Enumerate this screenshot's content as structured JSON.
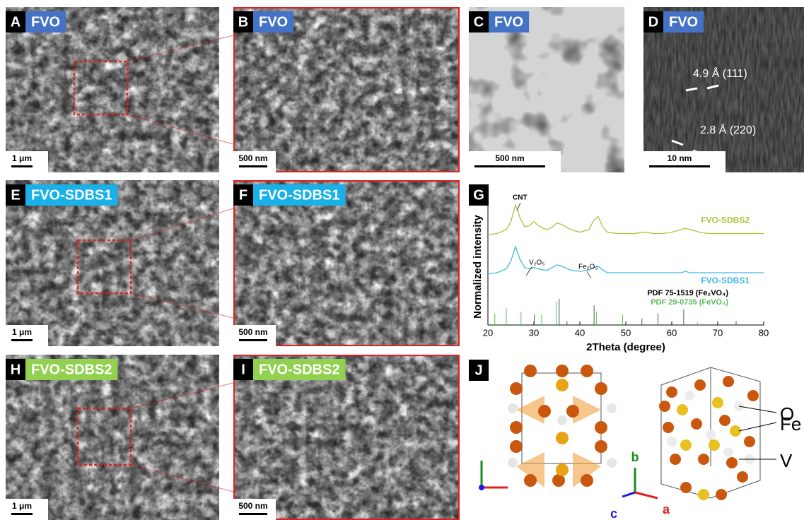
{
  "panels": [
    {
      "label": "A",
      "tag": "FVO",
      "tag_color": "#4472c4",
      "scale": "1 μm"
    },
    {
      "label": "B",
      "tag": "FVO",
      "tag_color": "#4472c4",
      "scale": "500 nm"
    },
    {
      "label": "C",
      "tag": "FVO",
      "tag_color": "#4472c4",
      "scale": "500 nm"
    },
    {
      "label": "D",
      "tag": "FVO",
      "tag_color": "#4472c4",
      "scale": "10 nm",
      "annotations": [
        "4.9 Å (111)",
        "2.8 Å (220)"
      ]
    },
    {
      "label": "E",
      "tag": "FVO-SDBS1",
      "tag_color": "#1ab0e8",
      "scale": "1 μm"
    },
    {
      "label": "F",
      "tag": "FVO-SDBS1",
      "tag_color": "#1ab0e8",
      "scale": "500 nm"
    },
    {
      "label": "H",
      "tag": "FVO-SDBS2",
      "tag_color": "#92d050",
      "scale": "1 μm"
    },
    {
      "label": "I",
      "tag": "FVO-SDBS2",
      "tag_color": "#92d050",
      "scale": "500 nm"
    }
  ],
  "chart_data": {
    "type": "line",
    "label": "G",
    "xlabel": "2Theta (degree)",
    "ylabel": "Normalized intensity",
    "x": [
      20,
      22,
      24,
      25,
      26,
      27,
      28,
      29,
      30,
      31,
      32,
      33,
      34,
      35,
      36,
      38,
      40,
      42,
      43,
      44,
      45,
      46,
      48,
      50,
      52,
      54,
      56,
      58,
      60,
      62,
      63,
      64,
      66,
      68,
      70,
      72,
      74,
      76,
      78,
      80
    ],
    "series": [
      {
        "name": "FVO-SDBS2",
        "color": "#a5c63b",
        "values": [
          6.9,
          7.0,
          7.3,
          7.9,
          9.2,
          8.2,
          7.5,
          7.6,
          7.9,
          7.6,
          7.4,
          7.3,
          7.5,
          7.8,
          7.7,
          7.3,
          7.1,
          7.3,
          8.0,
          8.3,
          7.5,
          7.1,
          7.0,
          7.0,
          7.0,
          7.1,
          7.0,
          7.0,
          7.1,
          7.3,
          7.4,
          7.3,
          7.1,
          7.0,
          7.0,
          7.0,
          7.0,
          7.0,
          7.0,
          7.0
        ]
      },
      {
        "name": "FVO-SDBS1",
        "color": "#41b9e6",
        "values": [
          3.9,
          4.0,
          4.3,
          4.9,
          6.0,
          5.0,
          4.4,
          4.3,
          4.4,
          4.3,
          4.2,
          4.2,
          4.4,
          4.6,
          4.5,
          4.2,
          4.1,
          4.2,
          4.4,
          4.5,
          4.2,
          4.0,
          4.0,
          4.0,
          4.0,
          4.0,
          4.0,
          4.0,
          4.0,
          4.0,
          4.1,
          4.0,
          4.0,
          4.0,
          4.0,
          4.0,
          4.0,
          4.0,
          4.0,
          4.0
        ]
      }
    ],
    "reference_lines": [
      {
        "name": "PDF 75-1519 (Fe₂VO₄)",
        "color": "#555555",
        "positions": [
          30.1,
          35.5,
          37.2,
          43.1,
          53.5,
          57.0,
          62.6,
          74.0
        ],
        "heights": [
          0.8,
          2.0,
          0.3,
          1.5,
          0.5,
          0.9,
          1.2,
          0.3
        ]
      },
      {
        "name": "PDF 29-0735 (FeVO₄)",
        "color": "#5cb85c",
        "positions": [
          21.5,
          24.0,
          27.2,
          31.7,
          34.9,
          43.6,
          49.3,
          65.6
        ],
        "heights": [
          0.9,
          1.3,
          1.0,
          0.8,
          1.8,
          1.0,
          0.8,
          0.2
        ]
      }
    ],
    "annotations": [
      "CNT",
      "V₂O₅",
      "Fe₂O₃"
    ],
    "xlim": [
      20,
      80
    ],
    "ylim": [
      0,
      10
    ],
    "xticks": [
      20,
      30,
      40,
      50,
      60,
      70,
      80
    ]
  },
  "structure": {
    "label": "J",
    "atoms": [
      "O",
      "Fe",
      "V"
    ],
    "axes": [
      "b",
      "c",
      "a"
    ]
  }
}
